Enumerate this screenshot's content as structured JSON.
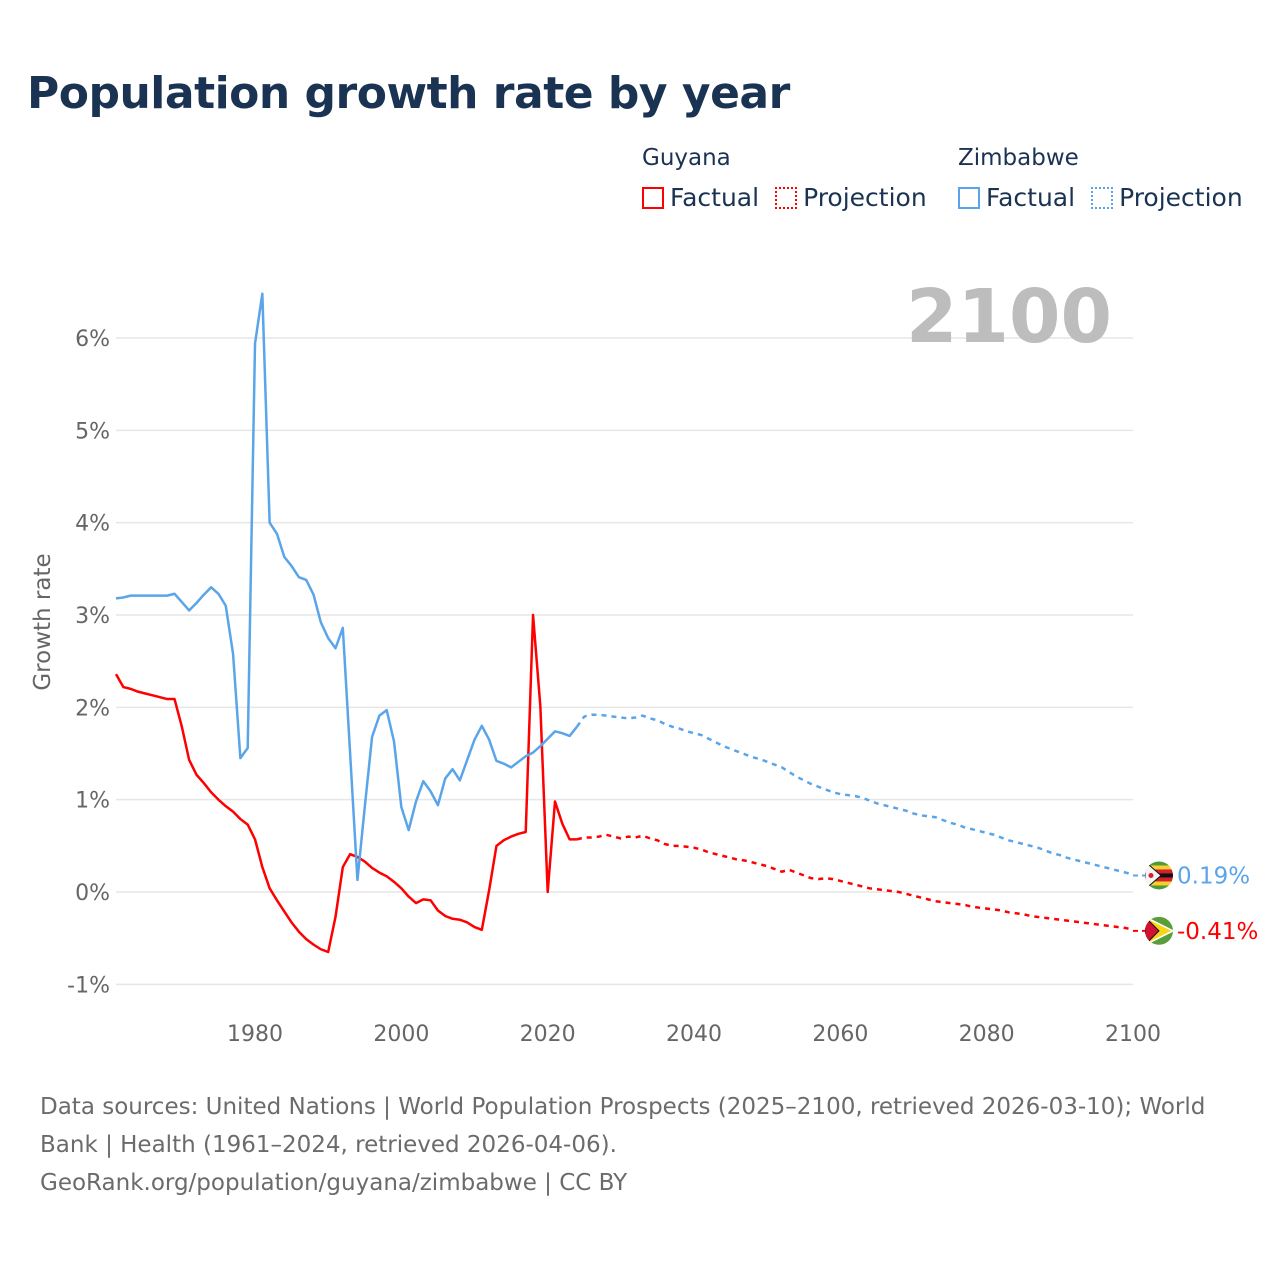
{
  "title": "Population growth rate by year",
  "legend": {
    "groups": [
      {
        "name": "Guyana",
        "factual": "Factual",
        "projection": "Projection",
        "color": "#ff0000"
      },
      {
        "name": "Zimbabwe",
        "factual": "Factual",
        "projection": "Projection",
        "color": "#5aa5ea"
      }
    ]
  },
  "year_label": "2100",
  "sources": {
    "line1": "Data sources: United Nations | World Population Prospects (2025–2100, retrieved 2026-03-10); World Bank | Health (1961–2024, retrieved 2026-04-06).",
    "line2": "GeoRank.org/population/guyana/zimbabwe | CC BY"
  },
  "chart_data": {
    "type": "line",
    "title": "Population growth rate by year",
    "xlabel": "",
    "ylabel": "Growth rate",
    "xlim": [
      1961,
      2100
    ],
    "ylim": [
      -1,
      6.5
    ],
    "x_ticks": [
      1980,
      2000,
      2020,
      2040,
      2060,
      2080,
      2100
    ],
    "x_tick_labels": [
      "1980",
      "2000",
      "2020",
      "2040",
      "2060",
      "2080",
      "2100"
    ],
    "y_ticks": [
      -1,
      0,
      1,
      2,
      3,
      4,
      5,
      6
    ],
    "y_tick_labels": [
      "-1%",
      "0%",
      "1%",
      "2%",
      "3%",
      "4%",
      "5%",
      "6%"
    ],
    "grid": true,
    "legend_position": "top-right",
    "series": [
      {
        "name": "Guyana",
        "color": "#ff0000",
        "factual_start": 1961,
        "factual": [
          2.36,
          2.22,
          2.2,
          2.17,
          2.15,
          2.13,
          2.11,
          2.09,
          2.09,
          1.79,
          1.43,
          1.27,
          1.18,
          1.08,
          1.0,
          0.93,
          0.87,
          0.79,
          0.73,
          0.57,
          0.27,
          0.04,
          -0.09,
          -0.21,
          -0.33,
          -0.43,
          -0.51,
          -0.57,
          -0.62,
          -0.65,
          -0.27,
          0.27,
          0.41,
          0.38,
          0.33,
          0.26,
          0.21,
          0.17,
          0.11,
          0.04,
          -0.05,
          -0.12,
          -0.08,
          -0.09,
          -0.2,
          -0.26,
          -0.29,
          -0.3,
          -0.33,
          -0.38,
          -0.41,
          0.02,
          0.5,
          0.56,
          0.6,
          0.63,
          0.65,
          3.0,
          2.01,
          0.0,
          0.98,
          0.74,
          0.57,
          0.57
        ],
        "projection_start": 2025,
        "projection": [
          0.59,
          0.59,
          0.6,
          0.62,
          0.6,
          0.58,
          0.6,
          0.59,
          0.61,
          0.58,
          0.56,
          0.52,
          0.5,
          0.5,
          0.49,
          0.48,
          0.46,
          0.43,
          0.41,
          0.39,
          0.37,
          0.35,
          0.34,
          0.32,
          0.3,
          0.28,
          0.25,
          0.22,
          0.24,
          0.21,
          0.18,
          0.15,
          0.14,
          0.15,
          0.14,
          0.12,
          0.1,
          0.08,
          0.06,
          0.04,
          0.03,
          0.02,
          0.01,
          0.0,
          -0.02,
          -0.04,
          -0.06,
          -0.08,
          -0.1,
          -0.11,
          -0.12,
          -0.13,
          -0.14,
          -0.16,
          -0.17,
          -0.18,
          -0.19,
          -0.2,
          -0.22,
          -0.23,
          -0.24,
          -0.26,
          -0.27,
          -0.28,
          -0.29,
          -0.3,
          -0.31,
          -0.32,
          -0.33,
          -0.34,
          -0.35,
          -0.36,
          -0.37,
          -0.38,
          -0.39,
          -0.41
        ],
        "end_label": "-0.41%"
      },
      {
        "name": "Zimbabwe",
        "color": "#5aa5ea",
        "factual_start": 1961,
        "factual": [
          3.18,
          3.19,
          3.21,
          3.21,
          3.21,
          3.21,
          3.21,
          3.21,
          3.23,
          3.14,
          3.05,
          3.13,
          3.22,
          3.3,
          3.23,
          3.1,
          2.58,
          1.45,
          1.56,
          5.94,
          6.48,
          4.0,
          3.88,
          3.63,
          3.53,
          3.41,
          3.38,
          3.22,
          2.92,
          2.75,
          2.64,
          2.86,
          1.5,
          0.13,
          0.92,
          1.68,
          1.91,
          1.97,
          1.63,
          0.92,
          0.67,
          0.98,
          1.2,
          1.09,
          0.94,
          1.23,
          1.33,
          1.21,
          1.43,
          1.65,
          1.8,
          1.65,
          1.42,
          1.39,
          1.35,
          1.41,
          1.47,
          1.51,
          1.58,
          1.66,
          1.74,
          1.72,
          1.69,
          1.79
        ],
        "projection_start": 2025,
        "projection": [
          1.9,
          1.92,
          1.92,
          1.91,
          1.9,
          1.89,
          1.88,
          1.89,
          1.91,
          1.88,
          1.86,
          1.82,
          1.79,
          1.77,
          1.74,
          1.72,
          1.7,
          1.66,
          1.62,
          1.58,
          1.55,
          1.52,
          1.49,
          1.46,
          1.44,
          1.41,
          1.38,
          1.35,
          1.3,
          1.25,
          1.21,
          1.17,
          1.14,
          1.11,
          1.08,
          1.06,
          1.05,
          1.04,
          1.02,
          0.99,
          0.96,
          0.94,
          0.92,
          0.9,
          0.88,
          0.85,
          0.83,
          0.82,
          0.81,
          0.78,
          0.75,
          0.73,
          0.7,
          0.68,
          0.66,
          0.64,
          0.62,
          0.59,
          0.56,
          0.54,
          0.52,
          0.5,
          0.48,
          0.45,
          0.42,
          0.4,
          0.37,
          0.35,
          0.33,
          0.31,
          0.29,
          0.27,
          0.25,
          0.23,
          0.21,
          0.19
        ],
        "end_label": "0.19%"
      }
    ]
  }
}
